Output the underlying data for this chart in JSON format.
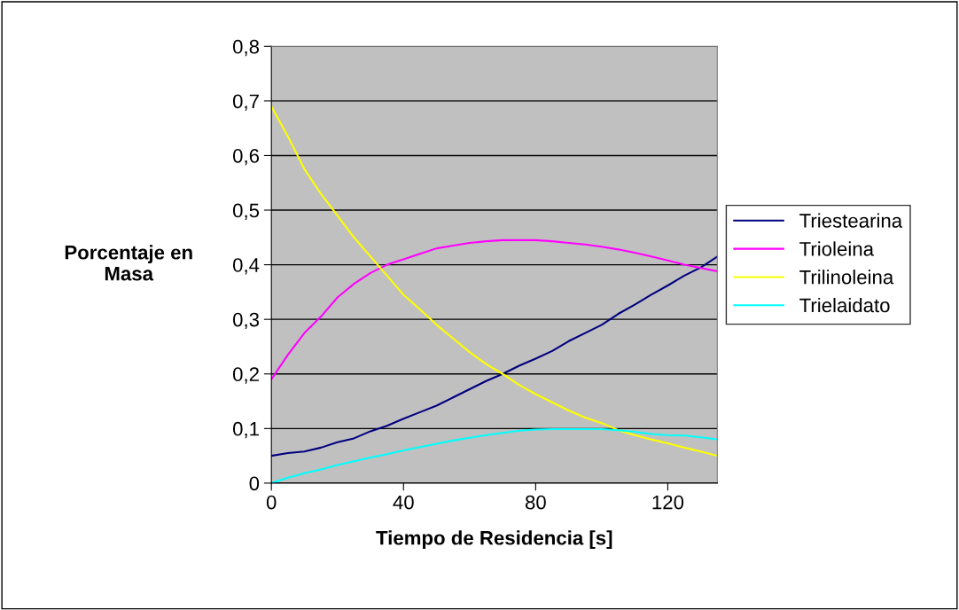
{
  "chart_data": {
    "type": "line",
    "xlabel": "Tiempo de Residencia [s]",
    "ylabel": "Porcentaje en\nMasa",
    "x": [
      0,
      5,
      10,
      15,
      20,
      25,
      30,
      35,
      40,
      45,
      50,
      55,
      60,
      65,
      70,
      75,
      80,
      85,
      90,
      95,
      100,
      105,
      110,
      115,
      120,
      125,
      130,
      135
    ],
    "series": [
      {
        "name": "Triestearina",
        "color": "#000080",
        "values": [
          0.05,
          0.055,
          0.058,
          0.065,
          0.075,
          0.082,
          0.095,
          0.105,
          0.118,
          0.13,
          0.142,
          0.157,
          0.172,
          0.187,
          0.2,
          0.215,
          0.228,
          0.242,
          0.26,
          0.275,
          0.29,
          0.31,
          0.327,
          0.345,
          0.362,
          0.38,
          0.395,
          0.415
        ]
      },
      {
        "name": "Trioleina",
        "color": "#ff00ff",
        "values": [
          0.19,
          0.235,
          0.275,
          0.305,
          0.34,
          0.365,
          0.385,
          0.4,
          0.41,
          0.42,
          0.43,
          0.435,
          0.44,
          0.443,
          0.445,
          0.445,
          0.445,
          0.443,
          0.44,
          0.437,
          0.433,
          0.428,
          0.422,
          0.415,
          0.408,
          0.4,
          0.394,
          0.388
        ]
      },
      {
        "name": "Trilinoleina",
        "color": "#ffff00",
        "values": [
          0.69,
          0.635,
          0.575,
          0.53,
          0.49,
          0.45,
          0.415,
          0.38,
          0.345,
          0.318,
          0.29,
          0.265,
          0.24,
          0.218,
          0.2,
          0.18,
          0.163,
          0.148,
          0.133,
          0.12,
          0.11,
          0.097,
          0.088,
          0.08,
          0.073,
          0.065,
          0.058,
          0.05
        ]
      },
      {
        "name": "Trielaidato",
        "color": "#00ffff",
        "values": [
          0,
          0.01,
          0.018,
          0.025,
          0.033,
          0.04,
          0.047,
          0.053,
          0.06,
          0.066,
          0.072,
          0.078,
          0.083,
          0.088,
          0.092,
          0.096,
          0.098,
          0.099,
          0.099,
          0.099,
          0.099,
          0.097,
          0.094,
          0.09,
          0.088,
          0.087,
          0.084,
          0.08
        ]
      }
    ],
    "xlim": [
      0,
      135
    ],
    "xticks": [
      0,
      40,
      80,
      120
    ],
    "ylim": [
      0,
      0.8
    ],
    "yticks": [
      {
        "value": 0,
        "label": "0"
      },
      {
        "value": 0.1,
        "label": "0,1"
      },
      {
        "value": 0.2,
        "label": "0,2"
      },
      {
        "value": 0.3,
        "label": "0,3"
      },
      {
        "value": 0.4,
        "label": "0,4"
      },
      {
        "value": 0.5,
        "label": "0,5"
      },
      {
        "value": 0.6,
        "label": "0,6"
      },
      {
        "value": 0.7,
        "label": "0,7"
      },
      {
        "value": 0.8,
        "label": "0,8"
      }
    ],
    "grid": "y",
    "legend": "right",
    "marker": "none",
    "line_style": "solid"
  }
}
